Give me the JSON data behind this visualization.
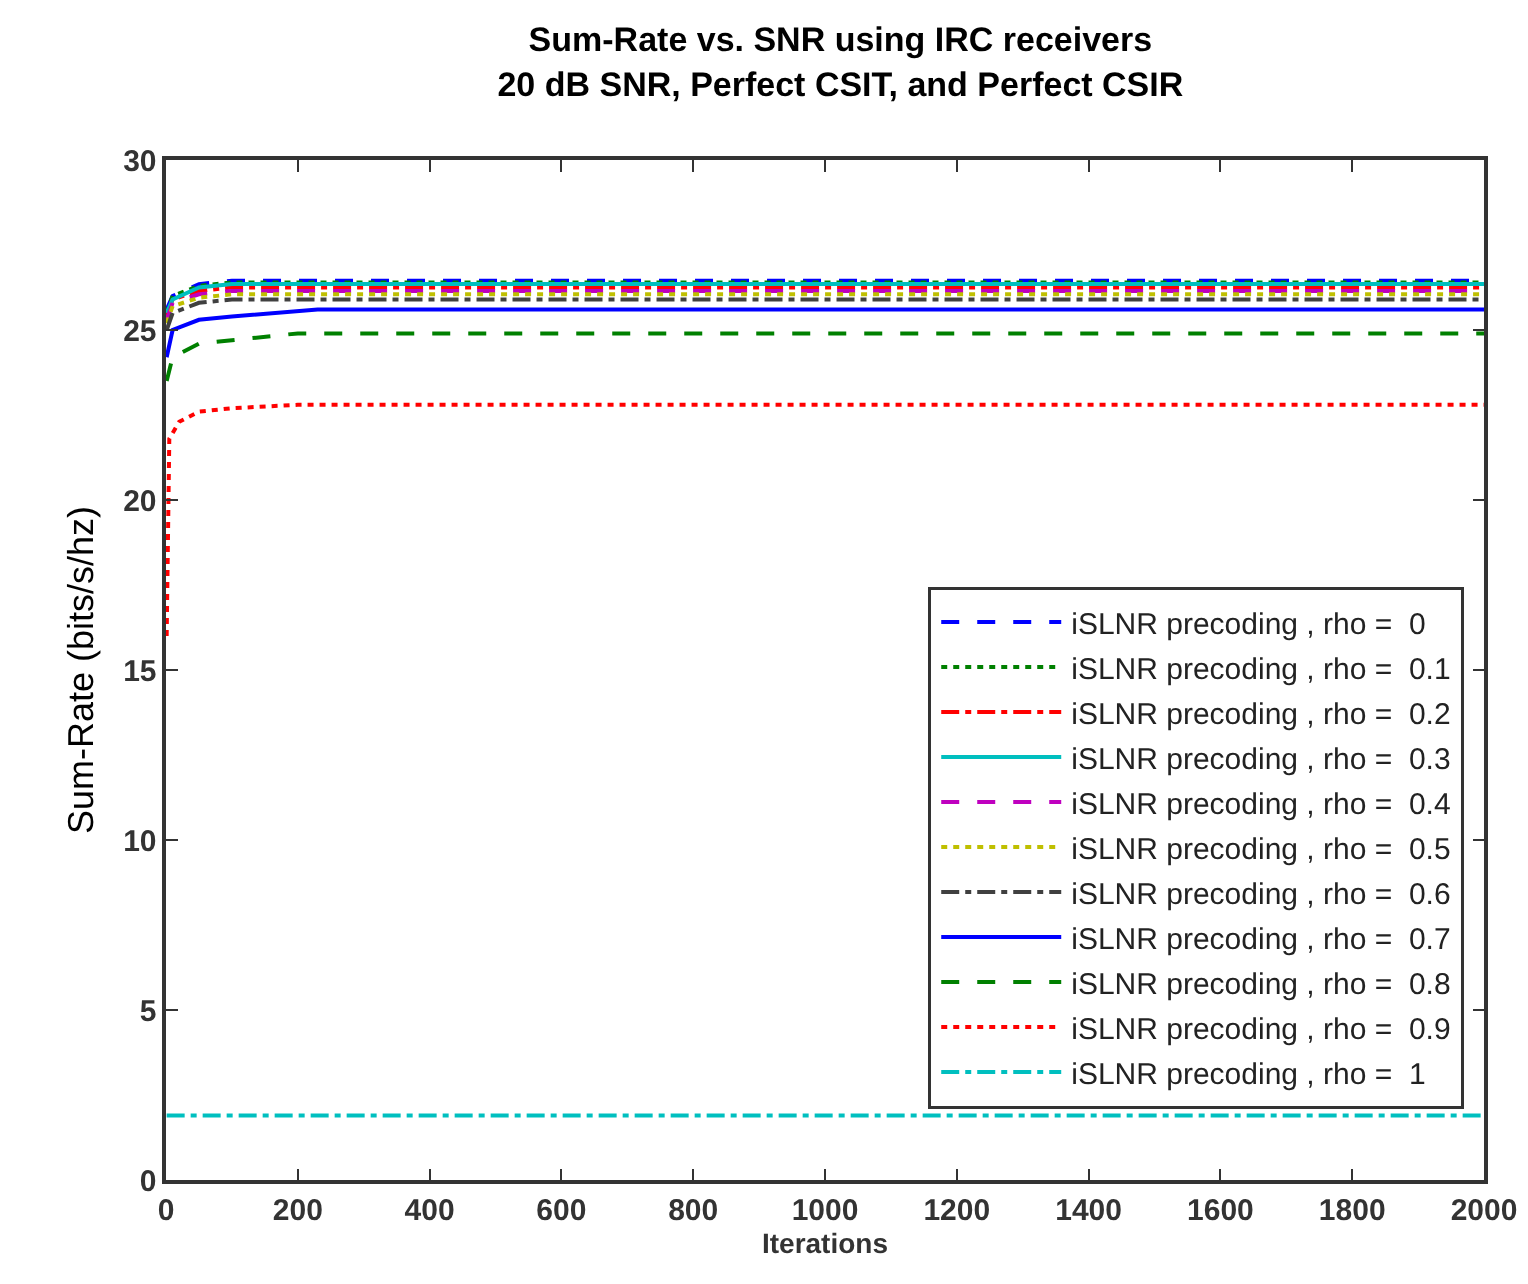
{
  "chart_data": {
    "type": "line",
    "title": "Sum-Rate vs. SNR using IRC receivers\n20 dB SNR, Perfect CSIT, and Perfect CSIR",
    "xlabel": "Iterations",
    "ylabel": "Sum-Rate (bits/s/hz)",
    "xlim": [
      0,
      2000
    ],
    "xticks": [
      0,
      200,
      400,
      600,
      800,
      1000,
      1200,
      1400,
      1600,
      1800,
      2000
    ],
    "ylim": [
      0,
      30
    ],
    "yticks": [
      0,
      5,
      10,
      15,
      20,
      25,
      30
    ],
    "grid": false,
    "legend": "right",
    "marker": "none",
    "series": [
      {
        "name": "iSLNR precoding , rho =  0",
        "color": "#0000ff",
        "line_style": "dashed",
        "x": [
          1,
          10,
          50,
          100,
          2000
        ],
        "values": [
          25.6,
          26.0,
          26.35,
          26.45,
          26.45
        ]
      },
      {
        "name": "iSLNR precoding , rho =  0.1",
        "color": "#008000",
        "line_style": "dotted",
        "x": [
          1,
          10,
          50,
          100,
          2000
        ],
        "values": [
          25.5,
          26.0,
          26.3,
          26.4,
          26.4
        ]
      },
      {
        "name": "iSLNR precoding , rho =  0.2",
        "color": "#ff0000",
        "line_style": "dashdot",
        "x": [
          1,
          10,
          50,
          100,
          2000
        ],
        "values": [
          25.4,
          25.9,
          26.15,
          26.25,
          26.25
        ]
      },
      {
        "name": "iSLNR precoding , rho =  0.3",
        "color": "#00bfbf",
        "line_style": "solid",
        "x": [
          1,
          10,
          50,
          100,
          2000
        ],
        "values": [
          25.5,
          25.9,
          26.25,
          26.35,
          26.35
        ]
      },
      {
        "name": "iSLNR precoding , rho =  0.4",
        "color": "#bf00bf",
        "line_style": "dashed",
        "x": [
          1,
          10,
          50,
          100,
          2000
        ],
        "values": [
          25.3,
          25.8,
          26.05,
          26.15,
          26.15
        ]
      },
      {
        "name": "iSLNR precoding , rho =  0.5",
        "color": "#bfbf00",
        "line_style": "dotted",
        "x": [
          1,
          10,
          50,
          100,
          2000
        ],
        "values": [
          25.2,
          25.7,
          25.95,
          26.05,
          26.05
        ]
      },
      {
        "name": "iSLNR precoding , rho =  0.6",
        "color": "#404040",
        "line_style": "dashdot",
        "x": [
          1,
          10,
          50,
          100,
          2000
        ],
        "values": [
          25.0,
          25.5,
          25.8,
          25.9,
          25.9
        ]
      },
      {
        "name": "iSLNR precoding , rho =  0.7",
        "color": "#0000ff",
        "line_style": "solid",
        "x": [
          1,
          10,
          50,
          100,
          230,
          2000
        ],
        "values": [
          24.2,
          25.0,
          25.3,
          25.4,
          25.6,
          25.6
        ]
      },
      {
        "name": "iSLNR precoding , rho =  0.8",
        "color": "#008000",
        "line_style": "dashed",
        "x": [
          1,
          10,
          50,
          100,
          200,
          2000
        ],
        "values": [
          23.5,
          24.2,
          24.6,
          24.7,
          24.9,
          24.9
        ]
      },
      {
        "name": "iSLNR precoding , rho =  0.9",
        "color": "#ff0000",
        "line_style": "dotted",
        "x": [
          1,
          5,
          20,
          50,
          100,
          200,
          2000
        ],
        "values": [
          16.0,
          21.8,
          22.3,
          22.6,
          22.7,
          22.8,
          22.8
        ]
      },
      {
        "name": "iSLNR precoding , rho =  1",
        "color": "#00bfbf",
        "line_style": "dashdot",
        "x": [
          1,
          2000
        ],
        "values": [
          1.9,
          1.9
        ]
      }
    ]
  }
}
